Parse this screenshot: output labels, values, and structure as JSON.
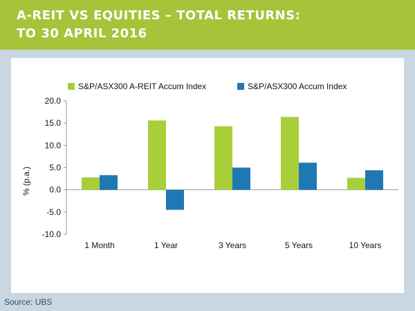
{
  "header": {
    "title_line1": "A-REIT VS EQUITIES – TOTAL RETURNS:",
    "title_line2": "TO 30 APRIL 2016"
  },
  "footer": {
    "source": "Source: UBS"
  },
  "colors": {
    "series1": "#a8cf3a",
    "series2": "#1f78b4",
    "header_band": "#a8c23a"
  },
  "chart_data": {
    "type": "bar",
    "title": "A-REIT VS EQUITIES – TOTAL RETURNS: TO 30 APRIL 2016",
    "ylabel": "% (p.a.)",
    "xlabel": "",
    "ylim": [
      -10,
      20
    ],
    "yticks": [
      "20.0",
      "15.0",
      "10.0",
      "5.0",
      "0.0",
      "-5.0",
      "-10.0"
    ],
    "ytick_values": [
      20,
      15,
      10,
      5,
      0,
      -5,
      -10
    ],
    "categories": [
      "1 Month",
      "1 Year",
      "3 Years",
      "5 Years",
      "10 Years"
    ],
    "series": [
      {
        "name": "S&P/ASX300 A-REIT Accum Index",
        "values": [
          2.8,
          15.6,
          14.3,
          16.4,
          2.7
        ]
      },
      {
        "name": "S&P/ASX300 Accum Index",
        "values": [
          3.3,
          -4.5,
          5.0,
          6.1,
          4.4
        ]
      }
    ],
    "legend": "top",
    "grid": false
  }
}
